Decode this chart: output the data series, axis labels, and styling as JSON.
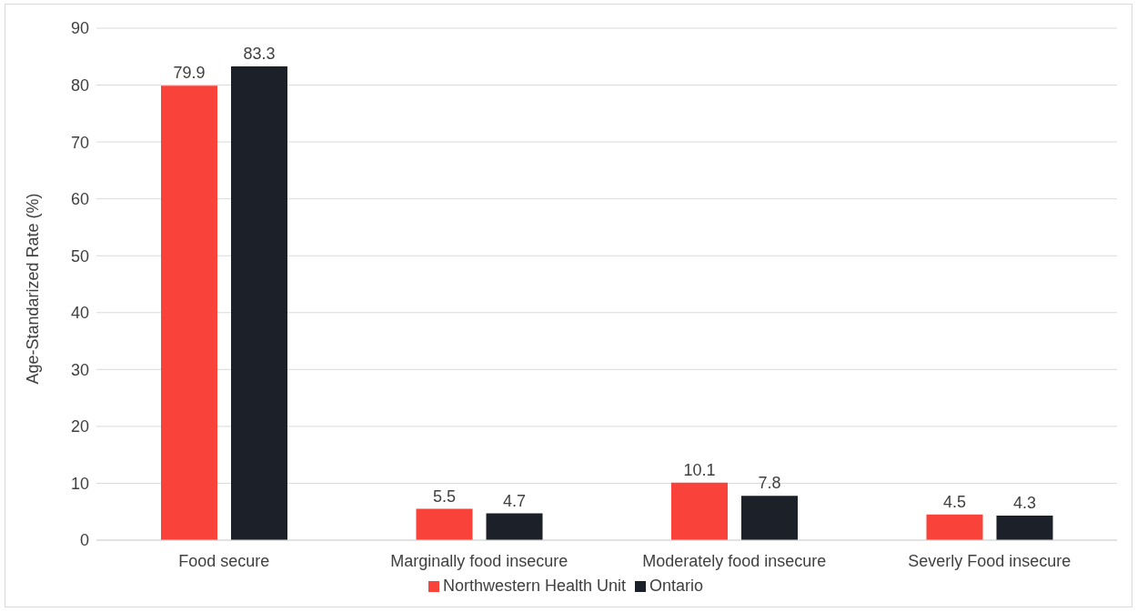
{
  "chart_data": {
    "type": "bar",
    "ylabel": "Age-Standarized Rate (%)",
    "categories": [
      "Food secure",
      "Marginally food insecure",
      "Moderately food insecure",
      "Severly Food insecure"
    ],
    "series": [
      {
        "name": "Northwestern Health Unit",
        "color": "#f9423a",
        "values": [
          79.9,
          5.5,
          10.1,
          4.5
        ]
      },
      {
        "name": "Ontario",
        "color": "#1c2029",
        "values": [
          83.3,
          4.7,
          7.8,
          4.3
        ]
      }
    ],
    "ylim": [
      0,
      90
    ],
    "yticks": [
      0,
      10,
      20,
      30,
      40,
      50,
      60,
      70,
      80,
      90
    ],
    "grid": "y",
    "legend": "bottom",
    "data_labels": true
  }
}
